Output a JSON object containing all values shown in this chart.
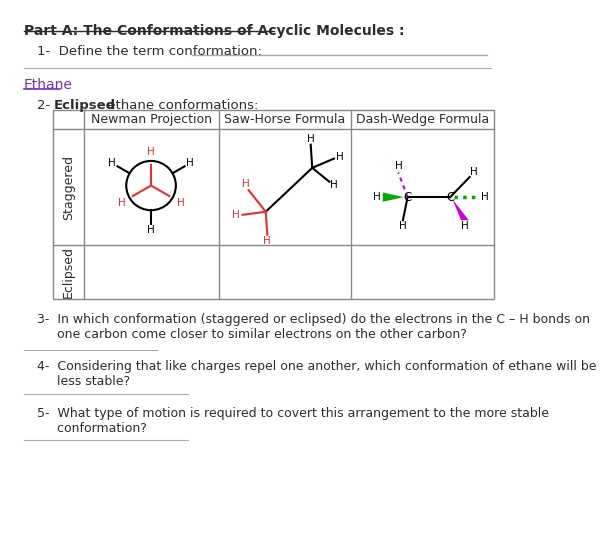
{
  "title": "Part A: The Conformations of Acyclic Molecules :",
  "q1": "1-  Define the term conformation:",
  "ethane_label": "Ethane",
  "q2_prefix": "2-  ",
  "q2_bold": "Eclipsed",
  "q2_rest": " ethane conformations:",
  "col1": "Newman Projection",
  "col2": "Saw-Horse Formula",
  "col3": "Dash-Wedge Formula",
  "row1": "Staggered",
  "row2": "Eclipsed",
  "q3": "3-  In which conformation (staggered or eclipsed) do the electrons in the C – H bonds on\n     one carbon come closer to similar electrons on the other carbon?",
  "q4": "4-  Considering that like charges repel one another, which conformation of ethane will be\n     less stable?",
  "q5": "5-  What type of motion is required to covert this arrangement to the more stable\n     conformation?",
  "bg_color": "#ffffff",
  "text_color": "#2d2d2d",
  "red_color": "#e63030",
  "ethane_color": "#7b2fbe",
  "green_color": "#00aa00",
  "magenta_color": "#cc00cc",
  "line_color": "#aaaaaa",
  "table_line_color": "#888888"
}
